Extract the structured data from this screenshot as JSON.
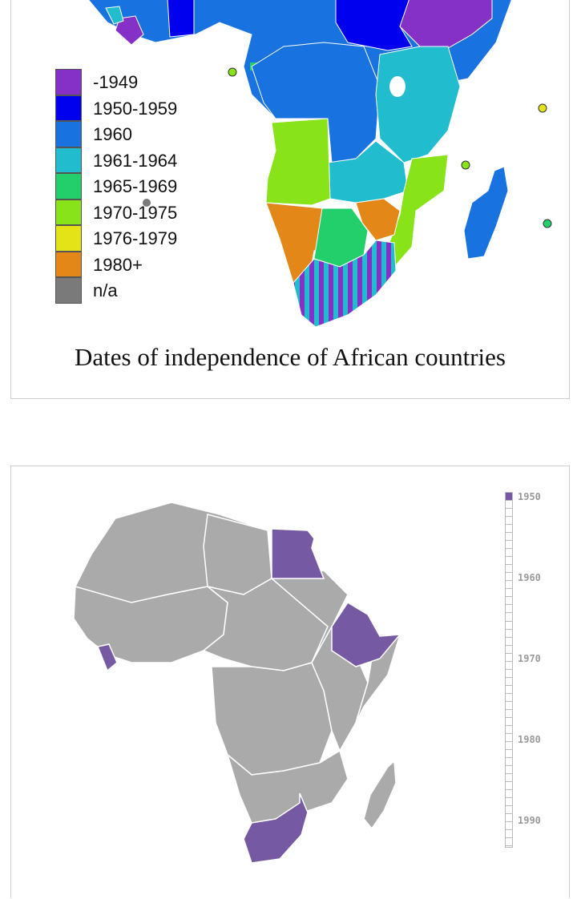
{
  "top_panel": {
    "caption": "Dates of independence of African countries",
    "legend": [
      {
        "label": "-1949",
        "color": "#8531c7"
      },
      {
        "label": "1950-1959",
        "color": "#0000ee"
      },
      {
        "label": "1960",
        "color": "#1872e0"
      },
      {
        "label": "1961-1964",
        "color": "#22bccf"
      },
      {
        "label": "1965-1969",
        "color": "#22cf6a"
      },
      {
        "label": "1970-1975",
        "color": "#88e318"
      },
      {
        "label": "1976-1979",
        "color": "#e3e318"
      },
      {
        "label": "1980+",
        "color": "#e38818"
      },
      {
        "label": "n/a",
        "color": "#7a7a7a"
      }
    ]
  },
  "bottom_panel": {
    "highlight_color": "#7659a3",
    "land_color": "#aaaaaa",
    "timeline": {
      "labels": [
        "1950",
        "1960",
        "1970",
        "1980",
        "1990"
      ],
      "filled_ticks": 1
    }
  }
}
